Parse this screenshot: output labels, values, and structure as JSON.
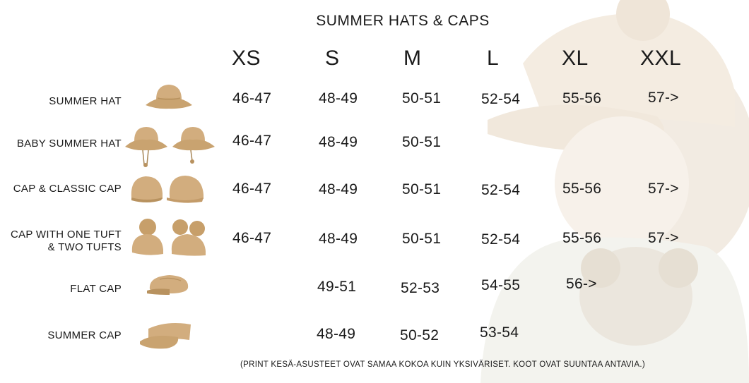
{
  "title": "SUMMER HATS & CAPS",
  "sizes": [
    "XS",
    "S",
    "M",
    "L",
    "XL",
    "XXL"
  ],
  "rows": [
    {
      "label_line1": "SUMMER HAT",
      "label_line2": "",
      "icon": "summer-hat-icon",
      "values": [
        "46-47",
        "48-49",
        "50-51",
        "52-54",
        "55-56",
        "57->"
      ]
    },
    {
      "label_line1": "BABY SUMMER HAT",
      "label_line2": "",
      "icon": "baby-summer-hat-icon",
      "values": [
        "46-47",
        "48-49",
        "50-51",
        "",
        "",
        ""
      ]
    },
    {
      "label_line1": "CAP & CLASSIC CAP",
      "label_line2": "",
      "icon": "cap-icon",
      "values": [
        "46-47",
        "48-49",
        "50-51",
        "52-54",
        "55-56",
        "57->"
      ]
    },
    {
      "label_line1": "CAP WITH ONE TUFT",
      "label_line2": "& TWO TUFTS",
      "icon": "tuft-cap-icon",
      "values": [
        "46-47",
        "48-49",
        "50-51",
        "52-54",
        "55-56",
        "57->"
      ]
    },
    {
      "label_line1": "FLAT CAP",
      "label_line2": "",
      "icon": "flat-cap-icon",
      "values": [
        "",
        "49-51",
        "52-53",
        "54-55",
        "56->",
        ""
      ]
    },
    {
      "label_line1": "SUMMER CAP",
      "label_line2": "",
      "icon": "visor-cap-icon",
      "values": [
        "",
        "48-49",
        "50-52",
        "53-54",
        "",
        ""
      ]
    }
  ],
  "footnote": "(PRINT KESÄ-ASUSTEET OVAT SAMAA KOKOA KUIN YKSIVÄRISET. KOOT OVAT SUUNTAA ANTAVIA.)",
  "colors": {
    "hat_tan": "#d2ad7e",
    "hat_shadow": "#b8925f",
    "text": "#1a1a1a"
  }
}
